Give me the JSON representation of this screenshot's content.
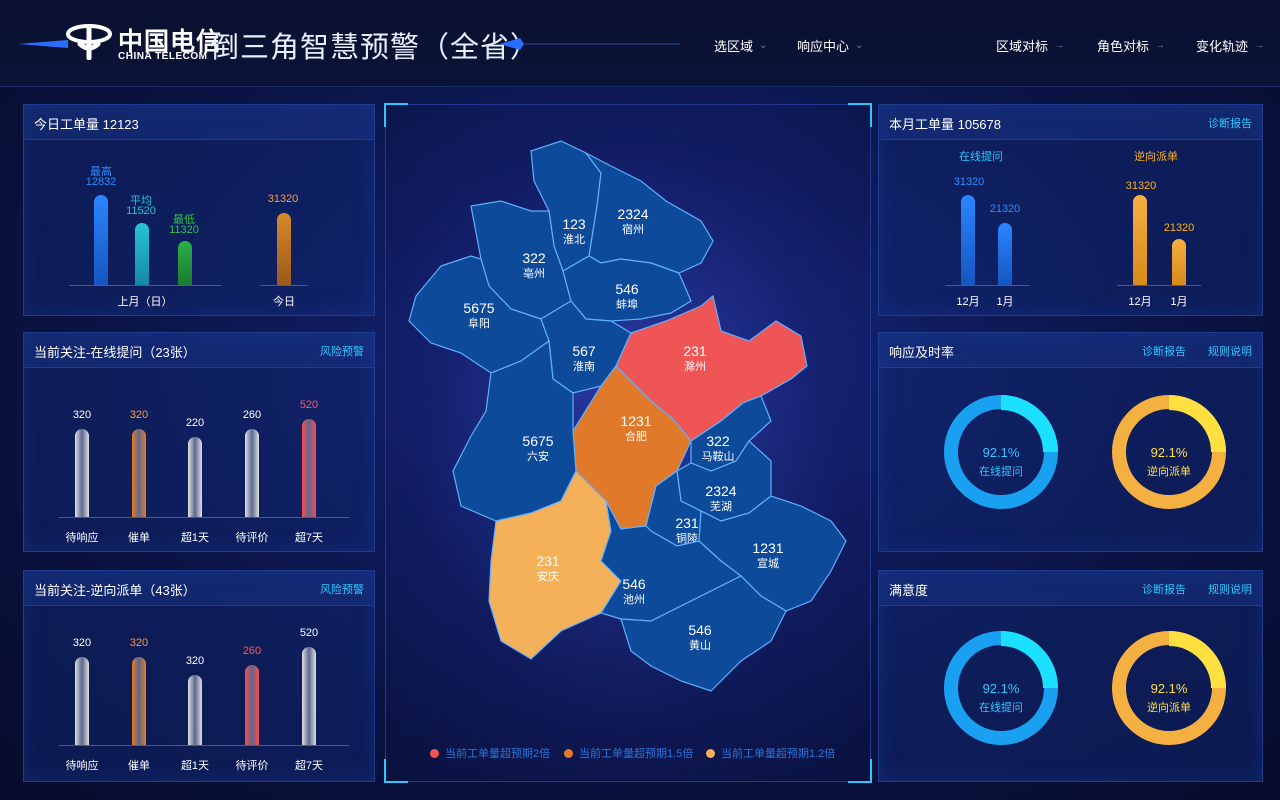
{
  "header": {
    "brand_cn": "中国电信",
    "brand_en": "CHINA TELECOM",
    "title": "倒三角智慧预警（全省）",
    "nav": [
      {
        "label": "选区域",
        "arrow": "⌄"
      },
      {
        "label": "响应中心",
        "arrow": "⌄"
      },
      {
        "label": "区域对标",
        "arrow": "→"
      },
      {
        "label": "角色对标",
        "arrow": "→"
      },
      {
        "label": "变化轨迹",
        "arrow": "→"
      }
    ]
  },
  "panel_today": {
    "title": "今日工单量 12123",
    "bars": [
      {
        "label": "最高",
        "value": "12832",
        "color": "#1e6fd8"
      },
      {
        "label": "平均",
        "value": "11520",
        "color": "#1aa6b8"
      },
      {
        "label": "最低",
        "value": "11320",
        "color": "#1f9a3a"
      },
      {
        "label": "",
        "value": "31320",
        "color": "#c07a2a"
      }
    ],
    "xlabels": [
      "上月（日）",
      "今日"
    ]
  },
  "panel_online": {
    "title": "当前关注-在线提问（23张）",
    "link": "风险预警",
    "bars": [
      {
        "value": "320",
        "label": "待响应",
        "color": "#e0e0e0",
        "vcolor": "#ffffff",
        "h": 88
      },
      {
        "value": "320",
        "label": "催单",
        "color": "#e87a1e",
        "vcolor": "#ff9a3a",
        "h": 88
      },
      {
        "value": "220",
        "label": "超1天",
        "color": "#e0e0e0",
        "vcolor": "#ffffff",
        "h": 80
      },
      {
        "value": "260",
        "label": "待评价",
        "color": "#e0e0e0",
        "vcolor": "#ffffff",
        "h": 88
      },
      {
        "value": "520",
        "label": "超7天",
        "color": "#ff4a4a",
        "vcolor": "#ff5a5a",
        "h": 98
      }
    ]
  },
  "panel_reverse": {
    "title": "当前关注-逆向派单（43张）",
    "link": "风险预警",
    "bars": [
      {
        "value": "320",
        "label": "待响应",
        "color": "#e0e0e0",
        "vcolor": "#ffffff",
        "h": 88
      },
      {
        "value": "320",
        "label": "催单",
        "color": "#e87a1e",
        "vcolor": "#ff9a3a",
        "h": 88
      },
      {
        "value": "320",
        "label": "超1天",
        "color": "#e0e0e0",
        "vcolor": "#ffffff",
        "h": 70
      },
      {
        "value": "260",
        "label": "待评价",
        "color": "#ff4a4a",
        "vcolor": "#ff5a5a",
        "h": 80
      },
      {
        "value": "520",
        "label": "超7天",
        "color": "#e0e0e0",
        "vcolor": "#ffffff",
        "h": 98
      }
    ]
  },
  "panel_month": {
    "title": "本月工单量 105678",
    "link": "诊断报告",
    "groups": [
      {
        "name": "在线提问",
        "color": "#1e6fd8",
        "label_color": "#2ec8ff",
        "bars": [
          {
            "value": "31320",
            "x": "12月"
          },
          {
            "value": "21320",
            "x": "1月"
          }
        ]
      },
      {
        "name": "逆向派单",
        "color": "#f5b042",
        "label_color": "#ffb020",
        "bars": [
          {
            "value": "31320",
            "x": "12月"
          },
          {
            "value": "21320",
            "x": "1月"
          }
        ]
      }
    ]
  },
  "panel_timely": {
    "title": "响应及时率",
    "links": [
      "诊断报告",
      "规则说明"
    ],
    "donuts": [
      {
        "pct": "92.1%",
        "name": "在线提问",
        "fraction": 0.921,
        "color": "#1aa0f0",
        "accent": "#1be0ff"
      },
      {
        "pct": "92.1%",
        "name": "逆向派单",
        "fraction": 0.921,
        "color": "#f5b042",
        "accent": "#ffe040"
      }
    ]
  },
  "panel_satisfaction": {
    "title": "满意度",
    "links": [
      "诊断报告",
      "规则说明"
    ],
    "donuts": [
      {
        "pct": "92.1%",
        "name": "在线提问",
        "fraction": 0.921,
        "color": "#1aa0f0",
        "accent": "#1be0ff"
      },
      {
        "pct": "92.1%",
        "name": "逆向派单",
        "fraction": 0.921,
        "color": "#f5b042",
        "accent": "#ffe040"
      }
    ]
  },
  "map": {
    "regions": [
      {
        "name": "淮北",
        "value": "123",
        "status": "normal"
      },
      {
        "name": "宿州",
        "value": "2324",
        "status": "normal"
      },
      {
        "name": "亳州",
        "value": "322",
        "status": "normal"
      },
      {
        "name": "蚌埠",
        "value": "546",
        "status": "normal"
      },
      {
        "name": "阜阳",
        "value": "5675",
        "status": "normal"
      },
      {
        "name": "淮南",
        "value": "567",
        "status": "normal"
      },
      {
        "name": "滁州",
        "value": "231",
        "status": "2x"
      },
      {
        "name": "合肥",
        "value": "1231",
        "status": "1.5x"
      },
      {
        "name": "六安",
        "value": "5675",
        "status": "normal"
      },
      {
        "name": "马鞍山",
        "value": "322",
        "status": "normal"
      },
      {
        "name": "芜湖",
        "value": "2324",
        "status": "normal"
      },
      {
        "name": "铜陵",
        "value": "231",
        "status": "normal"
      },
      {
        "name": "宣城",
        "value": "1231",
        "status": "normal"
      },
      {
        "name": "安庆",
        "value": "231",
        "status": "1.2x"
      },
      {
        "name": "池州",
        "value": "546",
        "status": "normal"
      },
      {
        "name": "黄山",
        "value": "546",
        "status": "normal"
      }
    ],
    "colors": {
      "normal": "#0d4a9a",
      "2x": "#f05555",
      "1.5x": "#e07a2a",
      "1.2x": "#f5b05a",
      "border": "#5fb0ff"
    },
    "legend": [
      {
        "label": "当前工单量超预期2倍",
        "color": "#f05555"
      },
      {
        "label": "当前工单量超预期1.5倍",
        "color": "#e07a2a"
      },
      {
        "label": "当前工单量超预期1.2倍",
        "color": "#f5b05a"
      }
    ]
  }
}
